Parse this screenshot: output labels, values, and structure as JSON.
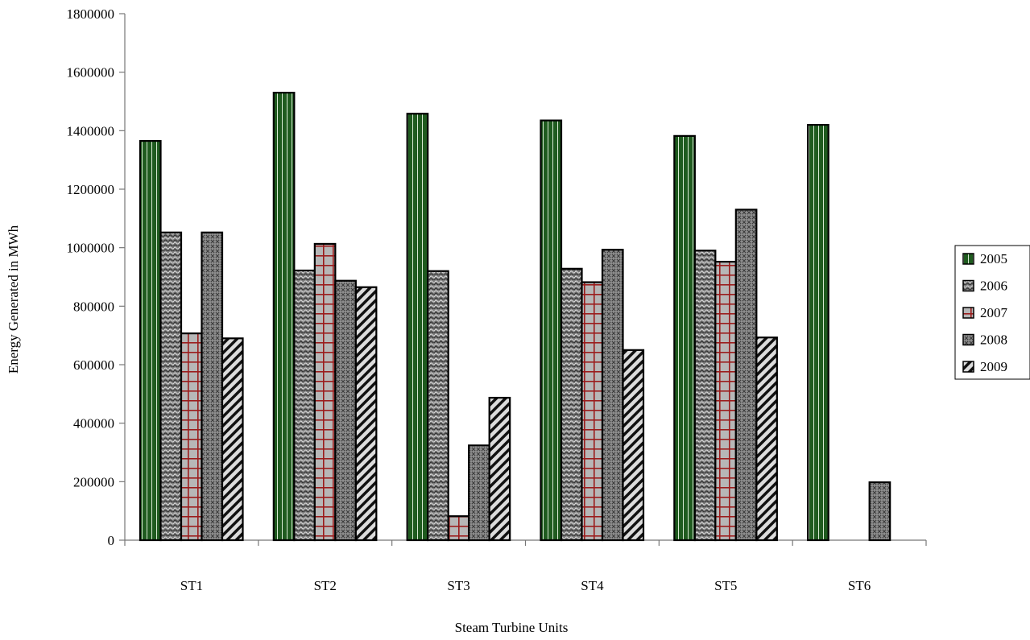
{
  "chart_data": {
    "type": "bar",
    "title": "",
    "xlabel": "Steam Turbine Units",
    "ylabel": "Energy Generated in MWh",
    "ylim": [
      0,
      1800000
    ],
    "y_ticks": [
      0,
      200000,
      400000,
      600000,
      800000,
      1000000,
      1200000,
      1400000,
      1600000,
      1800000
    ],
    "y_tick_labels": [
      "0",
      "200000",
      "400000",
      "600000",
      "800000",
      "1000000",
      "1200000",
      "1400000",
      "1600000",
      "1800000"
    ],
    "grid": false,
    "legend_position": "right",
    "categories": [
      "ST1",
      "ST2",
      "ST3",
      "ST4",
      "ST5",
      "ST6"
    ],
    "series": [
      {
        "name": "2005",
        "pattern": "vertical-stripes",
        "color": "#1f5b1f",
        "values": [
          1365000,
          1530000,
          1458000,
          1435000,
          1382000,
          1420000
        ]
      },
      {
        "name": "2006",
        "pattern": "wavy-dots",
        "color": "#8a8a8a",
        "values": [
          1052000,
          922000,
          920000,
          928000,
          990000,
          0
        ]
      },
      {
        "name": "2007",
        "pattern": "red-grid",
        "color": "#a8a8a8",
        "values": [
          707000,
          1013000,
          82000,
          882000,
          952000,
          0
        ]
      },
      {
        "name": "2008",
        "pattern": "crosshatch",
        "color": "#8c8c8c",
        "values": [
          1052000,
          887000,
          324000,
          993000,
          1130000,
          198000
        ]
      },
      {
        "name": "2009",
        "pattern": "diagonal-stripes",
        "color": "#cfcfcf",
        "values": [
          690000,
          865000,
          487000,
          650000,
          693000,
          0
        ]
      }
    ]
  }
}
